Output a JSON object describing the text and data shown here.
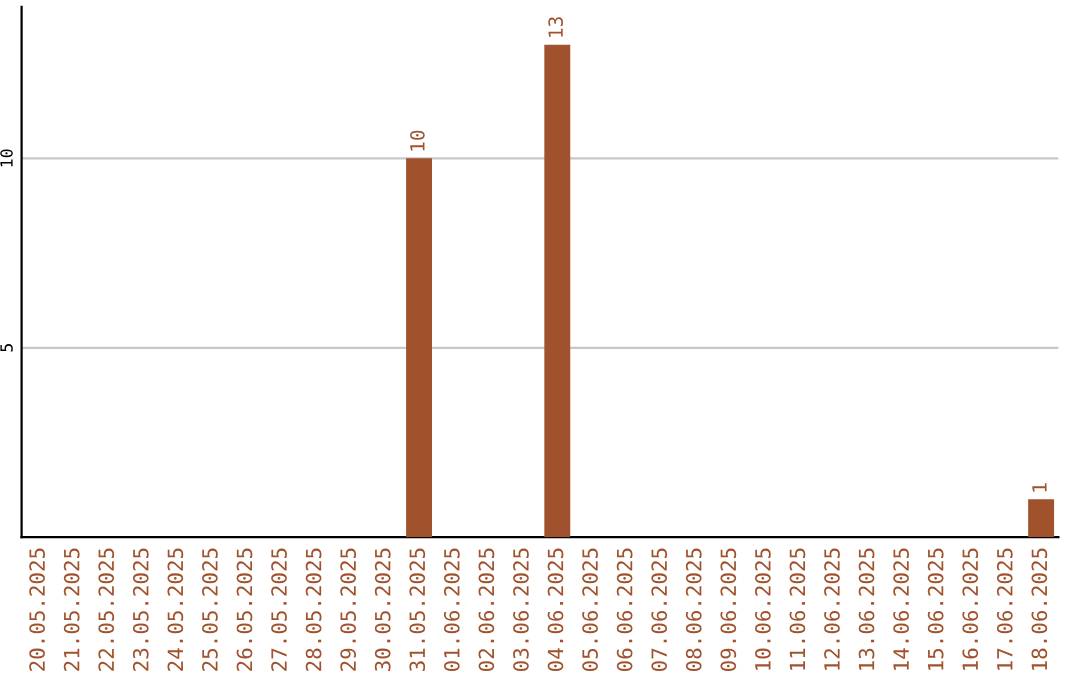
{
  "chart_data": {
    "type": "bar",
    "categories": [
      "20.05.2025",
      "21.05.2025",
      "22.05.2025",
      "23.05.2025",
      "24.05.2025",
      "25.05.2025",
      "26.05.2025",
      "27.05.2025",
      "28.05.2025",
      "29.05.2025",
      "30.05.2025",
      "31.05.2025",
      "01.06.2025",
      "02.06.2025",
      "03.06.2025",
      "04.06.2025",
      "05.06.2025",
      "06.06.2025",
      "07.06.2025",
      "08.06.2025",
      "09.06.2025",
      "10.06.2025",
      "11.06.2025",
      "12.06.2025",
      "13.06.2025",
      "14.06.2025",
      "15.06.2025",
      "16.06.2025",
      "17.06.2025",
      "18.06.2025"
    ],
    "values": [
      0,
      0,
      0,
      0,
      0,
      0,
      0,
      0,
      0,
      0,
      0,
      10,
      0,
      0,
      0,
      13,
      0,
      0,
      0,
      0,
      0,
      0,
      0,
      0,
      0,
      0,
      0,
      0,
      0,
      1
    ],
    "value_labels": [
      null,
      null,
      null,
      null,
      null,
      null,
      null,
      null,
      null,
      null,
      null,
      "10",
      null,
      null,
      null,
      "13",
      null,
      null,
      null,
      null,
      null,
      null,
      null,
      null,
      null,
      null,
      null,
      null,
      null,
      "1"
    ],
    "color": "#a0522d",
    "ylim": [
      0,
      14
    ],
    "yticks": [
      5,
      10
    ],
    "grid": "y",
    "legend": false
  }
}
